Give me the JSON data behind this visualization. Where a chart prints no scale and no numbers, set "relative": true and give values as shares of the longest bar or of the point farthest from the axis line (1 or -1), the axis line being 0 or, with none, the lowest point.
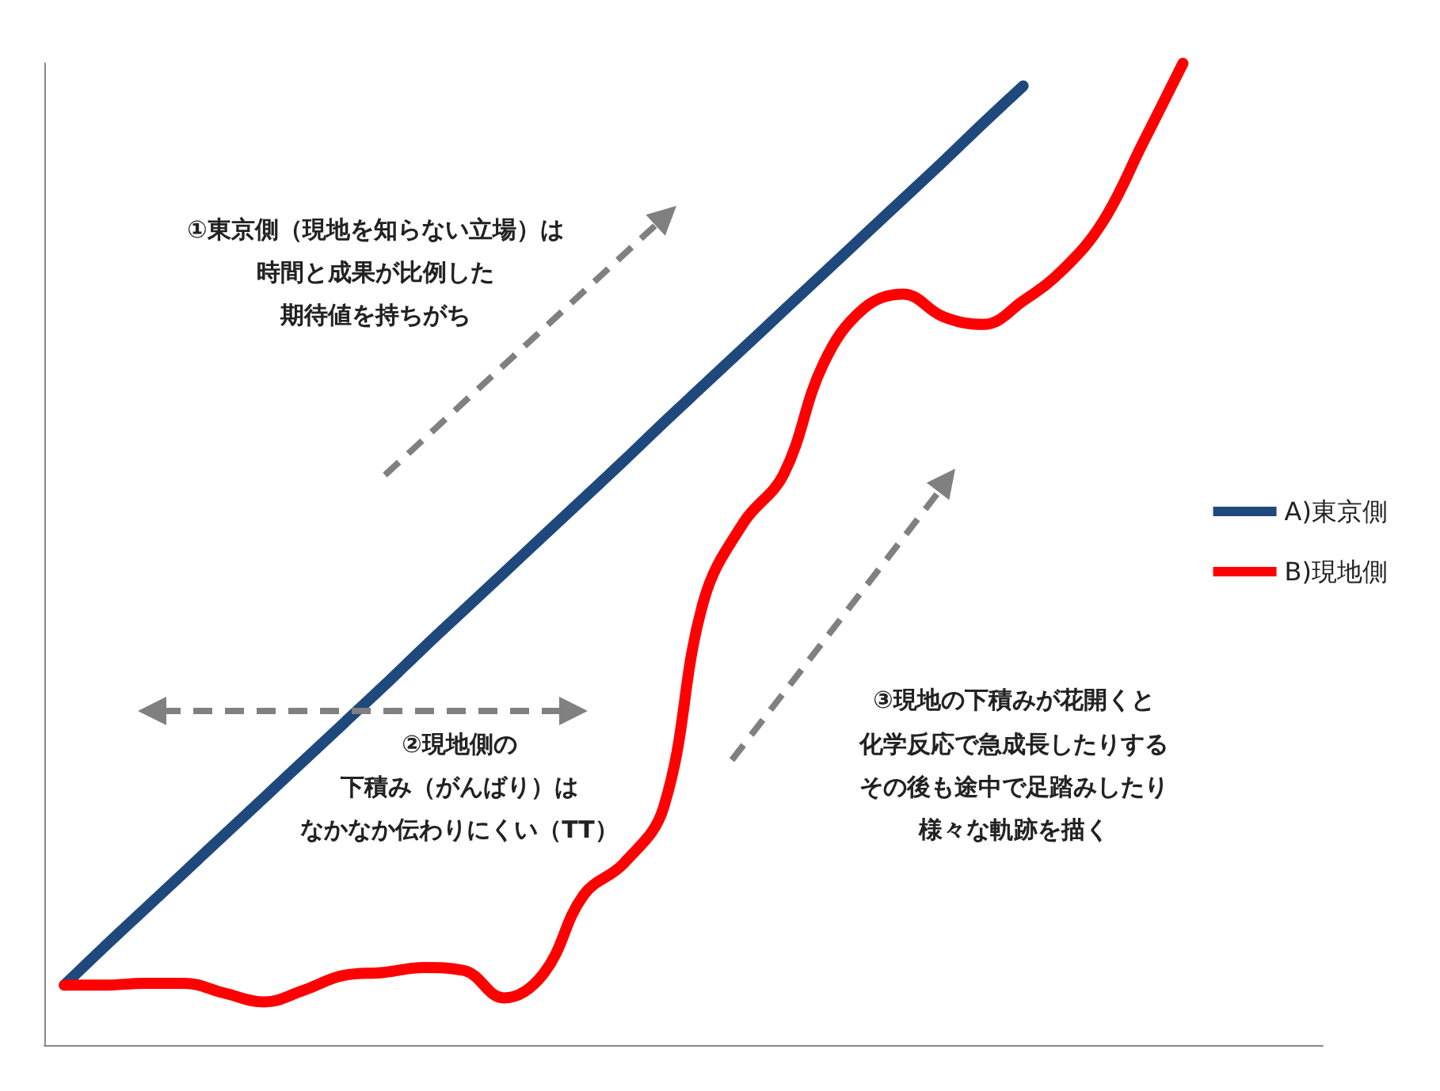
{
  "chart_data": {
    "type": "line",
    "relative": true,
    "legend": "right",
    "grid": false,
    "marker": "none",
    "categories": [
      null,
      null,
      null,
      null,
      null,
      null,
      null,
      null,
      null,
      null,
      null,
      null,
      null,
      null,
      null,
      null,
      null,
      null,
      null,
      null,
      null,
      null,
      null,
      null,
      null,
      null,
      null,
      null,
      null,
      null,
      null,
      null
    ],
    "series": [
      {
        "name": "A)東京側",
        "color": "#1f497d",
        "values": [
          0.061,
          0.1,
          0.138,
          0.176,
          0.214,
          0.252,
          0.29,
          0.328,
          0.366,
          0.405,
          0.443,
          0.481,
          0.519,
          0.557,
          0.595,
          0.634,
          0.672,
          0.71,
          0.748,
          0.786,
          0.824,
          0.862,
          0.9,
          0.939,
          0.977,
          null,
          null,
          null,
          null,
          null,
          null,
          null
        ]
      },
      {
        "name": "B)現地側",
        "color": "#ff0000",
        "values": [
          0.061,
          0.061,
          0.063,
          0.063,
          0.053,
          0.044,
          0.056,
          0.071,
          0.074,
          0.079,
          0.076,
          0.048,
          0.073,
          0.153,
          0.185,
          0.242,
          0.452,
          0.532,
          0.581,
          0.694,
          0.75,
          0.765,
          0.742,
          0.734,
          0.758,
          0.79,
          0.839,
          0.919,
          1.0,
          null,
          null,
          null
        ]
      }
    ],
    "annotations": [
      "①東京側（現地を知らない立場）は",
      "時間と成果が比例した",
      "期待値を持ちがち",
      "②現地側の",
      "下積み（がんばり）は",
      "なかなか伝わりにくい（TT）",
      "③現地の下積みが花開くと",
      "化学反応で急成長したりする",
      "その後も途中で足踏みしたり",
      "様々な軌跡を描く"
    ]
  }
}
